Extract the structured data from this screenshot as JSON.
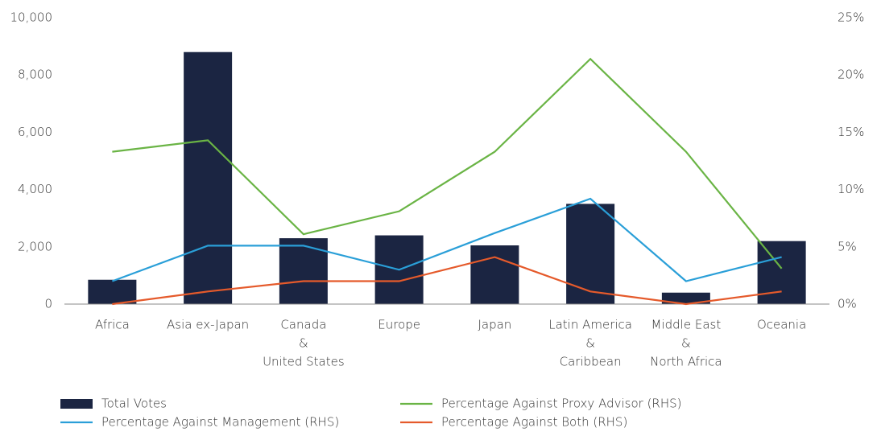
{
  "chart_data": {
    "type": "bar",
    "categories": [
      [
        "Africa"
      ],
      [
        "Asia ex-Japan"
      ],
      [
        "Canada",
        "&",
        "United States"
      ],
      [
        "Europe"
      ],
      [
        "Japan"
      ],
      [
        "Latin America",
        "&",
        "Caribbean"
      ],
      [
        "Middle East",
        "&",
        "North Africa"
      ],
      [
        "Oceania"
      ]
    ],
    "series": [
      {
        "name": "Total Votes",
        "type": "bar",
        "color": "#1b2542",
        "values": [
          850,
          8800,
          2300,
          2400,
          2050,
          3500,
          400,
          2200
        ]
      },
      {
        "name": "Percentage Against Proxy Advisor (RHS)",
        "type": "line",
        "axis": "y2",
        "color": "#6ab445",
        "values": [
          13.3,
          14.3,
          6.1,
          8.1,
          13.3,
          21.4,
          13.3,
          3.1
        ]
      },
      {
        "name": "Percentage Against Management (RHS)",
        "type": "line",
        "axis": "y2",
        "color": "#2a9fd8",
        "values": [
          2.0,
          5.1,
          5.1,
          3.0,
          6.2,
          9.2,
          2.0,
          4.1
        ]
      },
      {
        "name": "Percentage Against Both (RHS)",
        "type": "line",
        "axis": "y2",
        "color": "#e55a2b",
        "values": [
          0,
          1.1,
          2.0,
          2.0,
          4.1,
          1.1,
          0,
          1.1
        ]
      }
    ],
    "ylim": [
      0,
      10000
    ],
    "yticks": [
      0,
      {
        "value": 2000,
        "label": "2,000"
      },
      {
        "value": 4000,
        "label": "4,000"
      },
      {
        "value": 6000,
        "label": "6,000"
      },
      {
        "value": 8000,
        "label": "8,000"
      },
      {
        "value": 10000,
        "label": "10,000"
      }
    ],
    "y2lim": [
      0,
      25
    ],
    "y2ticks": [
      {
        "value": 0,
        "label": "0%"
      },
      {
        "value": 5,
        "label": "5%"
      },
      {
        "value": 10,
        "label": "10%"
      },
      {
        "value": 15,
        "label": "15%"
      },
      {
        "value": 20,
        "label": "20%"
      },
      {
        "value": 25,
        "label": "25%"
      }
    ],
    "legend": "bottom"
  }
}
